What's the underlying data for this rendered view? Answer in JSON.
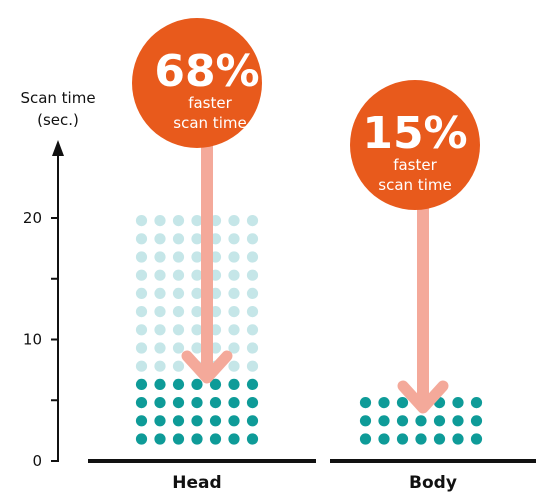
{
  "chart_data": {
    "type": "bar",
    "title": "",
    "ylabel": [
      "Scan time",
      "(sec.)"
    ],
    "yticks": [
      0,
      10,
      20
    ],
    "ylim": [
      0,
      20
    ],
    "categories": [
      "Head",
      "Body"
    ],
    "series": [
      {
        "values": [
          20,
          4.7
        ]
      },
      {
        "values": [
          6.4,
          4.0
        ]
      }
    ],
    "annotations": [
      {
        "category": "Head",
        "value": "68%",
        "text": [
          "faster",
          "scan time"
        ]
      },
      {
        "category": "Body",
        "value": "15%",
        "text": [
          "faster",
          "scan time"
        ]
      }
    ]
  },
  "colors": {
    "before": "#c5e6e8",
    "after": "#0e9b98",
    "bubble": "#e85a1c",
    "arrow": "#f4a99a",
    "axis": "#111111"
  }
}
